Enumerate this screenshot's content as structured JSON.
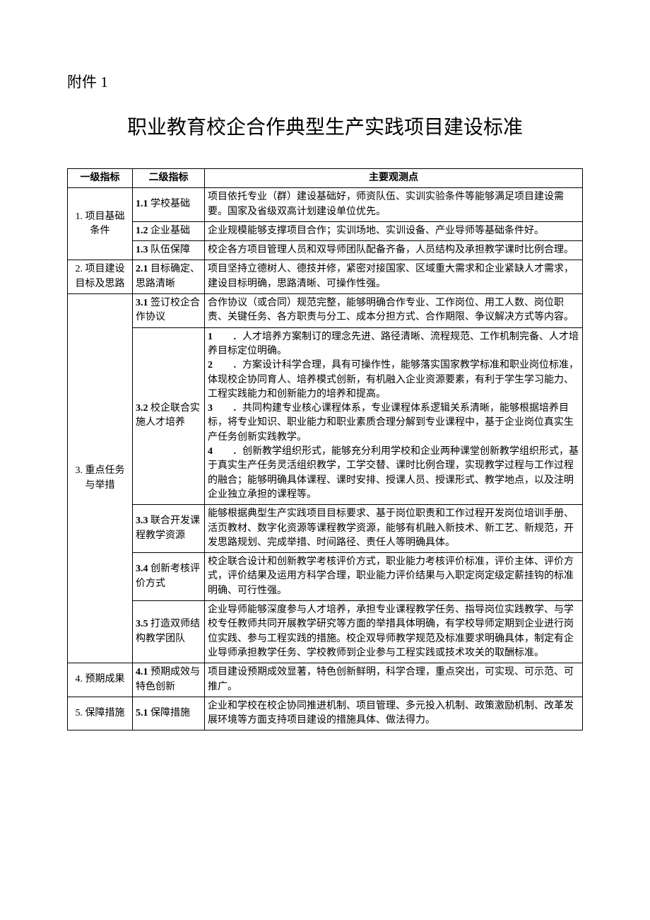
{
  "attachment_label": "附件 1",
  "title": "职业教育校企合作典型生产实践项目建设标准",
  "headers": {
    "col1": "一级指标",
    "col2": "二级指标",
    "col3": "主要观测点"
  },
  "rows": [
    {
      "lvl1": "1. 项目基础条件",
      "lvl1_rowspan": 3,
      "lvl2": "1.1 学校基础",
      "obs": "项目依托专业（群）建设基础好，师资队伍、实训实验条件等能够满足项目建设需要。国家及省级双高计划建设单位优先。"
    },
    {
      "lvl2": "1.2 企业基础",
      "obs": "企业规模能够支撑项目合作；实训场地、实训设备、产业导师等基础条件好。"
    },
    {
      "lvl2": "1.3 队伍保障",
      "obs": "校企各方项目管理人员和双导师团队配备齐备，人员结构及承担教学课时比例合理。"
    },
    {
      "lvl1": "2. 项目建设目标及思路",
      "lvl1_rowspan": 1,
      "lvl2": "2.1 目标确定、思路清晰",
      "obs": "项目坚持立德树人、德技并修，紧密对接国家、区域重大需求和企业紧缺人才需求，建设目标明确，思路清晰、可操作性强。"
    },
    {
      "lvl1": "3. 重点任务与举措",
      "lvl1_rowspan": 5,
      "lvl2": "3.1 签订校企合作协议",
      "obs": "合作协议（或合同）规范完整，能够明确合作专业、工作岗位、用工人数、岗位职责、关键任务、各方职责与分工、成本分担方式、合作期限、争议解决方式等内容。"
    },
    {
      "lvl2": "3.2 校企联合实施人才培养",
      "obs_type": "list",
      "obs_items": [
        {
          "num": "1",
          "text": "．人才培养方案制订的理念先进、路径清晰、流程规范、工作机制完备、人才培养目标定位明确。"
        },
        {
          "num": "2",
          "text": "．方案设计科学合理，具有可操作性，能够落实国家教学标准和职业岗位标准，体现校企协同育人、培养模式创新，有机融入企业资源要素，有利于学生学习能力、工程实践能力和创新能力的培养和提高。"
        },
        {
          "num": "3",
          "text": "．共同构建专业核心课程体系，专业课程体系逻辑关系清晰，能够根据培养目标，将专业知识、职业能力和职业素质合理分解到专业课程中，基于企业岗位真实生产任务创新实践教学。"
        },
        {
          "num": "4",
          "text": "．创新教学组织形式，能够充分利用学校和企业两种课堂创新教学组织形式，基于真实生产任务灵活组织教学，工学交替、课时比例合理，实现教学过程与工作过程的融合；能够明确具体课程、课时安排、授课人员、授课形式、教学地点，以及注明企业独立承担的课程等。"
        }
      ]
    },
    {
      "lvl2": "3.3 联合开发课程教学资源",
      "obs": "能够根据典型生产实践项目目标要求、基于岗位职责和工作过程开发岗位培训手册、活页教材、数字化资源等课程教学资源，能够有机融入新技术、新工艺、新规范，开发思路规划、完成举措、时间路径、责任人等明确具体。"
    },
    {
      "lvl2": "3.4 创新考核评价方式",
      "obs": "校企联合设计和创新教学考核评价方式，职业能力考核评价标准，评价主体、评价方式，评价结果及运用方科学合理，职业能力评价结果与入职定岗定级定薪挂钩的标准明确、可行性强。"
    },
    {
      "lvl2": "3.5 打造双师结构教学团队",
      "obs": "企业导师能够深度参与人才培养，承担专业课程教学任务、指导岗位实践教学、与学校专任教师共同开展教学研究等方面的举措具体明确，有学校导师定期到企业进行岗位实践、参与工程实践的措施。校企双导师教学规范及标准要求明确具体，制定有企业导师承担教学任务、学校教师到企业参与工程实践或技术攻关的取酬标准。"
    },
    {
      "lvl1": "4. 预期成果",
      "lvl1_rowspan": 1,
      "lvl2": "4.1 预期成效与特色创新",
      "obs": "项目建设预期成效显著，特色创新鲜明，科学合理，重点突出，可实现、可示范、可推广。"
    },
    {
      "lvl1": "5. 保障措施",
      "lvl1_rowspan": 1,
      "lvl2": "5.1 保障措施",
      "obs": "企业和学校在校企协同推进机制、项目管理、多元投入机制、政策激励机制、改革发展环境等方面支持项目建设的措施具体、做法得力。"
    }
  ]
}
